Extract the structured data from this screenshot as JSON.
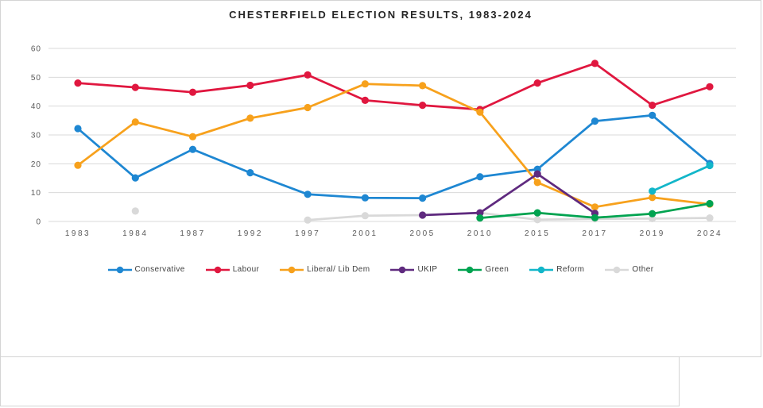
{
  "page": {
    "background": "#ffffff",
    "panel_border": "#d4d4d4"
  },
  "chart_data": {
    "type": "line",
    "title": "CHESTERFIELD ELECTION RESULTS, 1983-2024",
    "xlabel": "",
    "ylabel": "",
    "ylim": [
      0,
      60
    ],
    "yticks": [
      0,
      10,
      20,
      30,
      40,
      50,
      60
    ],
    "grid": true,
    "gridline_color": "#d9d9d9",
    "axis_text_color": "#595959",
    "legend_position": "bottom",
    "categories": [
      "1983",
      "1984",
      "1987",
      "1992",
      "1997",
      "2001",
      "2005",
      "2010",
      "2015",
      "2017",
      "2019",
      "2024"
    ],
    "series": [
      {
        "name": "Conservative",
        "color": "#1e87d2",
        "values": [
          32.2,
          15.1,
          25.0,
          16.9,
          9.4,
          8.2,
          8.1,
          15.5,
          18.1,
          34.8,
          36.8,
          20.1
        ]
      },
      {
        "name": "Labour",
        "color": "#e0173f",
        "values": [
          48.0,
          46.5,
          44.8,
          47.2,
          50.8,
          42.0,
          40.3,
          38.8,
          48.0,
          54.8,
          40.3,
          46.7
        ]
      },
      {
        "name": "Liberal/ Lib Dem",
        "color": "#f7a11c",
        "values": [
          19.5,
          34.5,
          29.4,
          35.8,
          39.5,
          47.7,
          47.1,
          37.9,
          13.5,
          5.0,
          8.3,
          6.0
        ]
      },
      {
        "name": "UKIP",
        "color": "#5f2a7f",
        "values": [
          null,
          null,
          null,
          null,
          null,
          null,
          2.2,
          3.0,
          16.5,
          2.8,
          null,
          null
        ]
      },
      {
        "name": "Green",
        "color": "#00a350",
        "values": [
          null,
          null,
          null,
          null,
          null,
          null,
          null,
          1.2,
          3.0,
          1.3,
          2.7,
          6.2
        ]
      },
      {
        "name": "Reform",
        "color": "#12b6c9",
        "values": [
          null,
          null,
          null,
          null,
          null,
          null,
          null,
          null,
          null,
          null,
          10.5,
          19.4
        ]
      },
      {
        "name": "Other",
        "color": "#d9d9d9",
        "values": [
          null,
          3.6,
          null,
          null,
          0.5,
          2.0,
          2.2,
          3.0,
          0.6,
          0.9,
          1.0,
          1.2
        ]
      }
    ]
  }
}
